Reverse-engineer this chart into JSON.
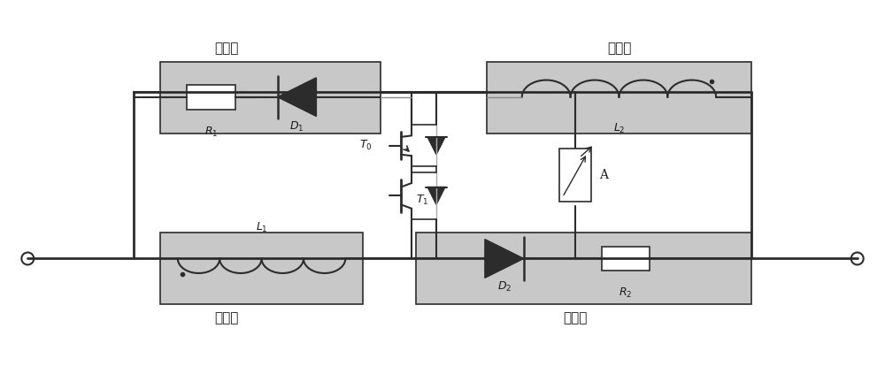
{
  "fig_width": 10.0,
  "fig_height": 4.23,
  "bg_color": "#ffffff",
  "box_color": "#c8c8c8",
  "line_color": "#2c2c2c",
  "text_color": "#1a1a1a",
  "labels": {
    "bridge1": "桥臂一",
    "bridge2": "桥臂二",
    "bridge3": "桥臂三",
    "bridge4": "桥臂四",
    "R1": "R₁",
    "D1": "D₁",
    "L2": "L₂",
    "T0": "T₀",
    "T1": "T₁",
    "A": "A",
    "L1": "L₁",
    "D2": "D₂",
    "R2": "R₂"
  }
}
